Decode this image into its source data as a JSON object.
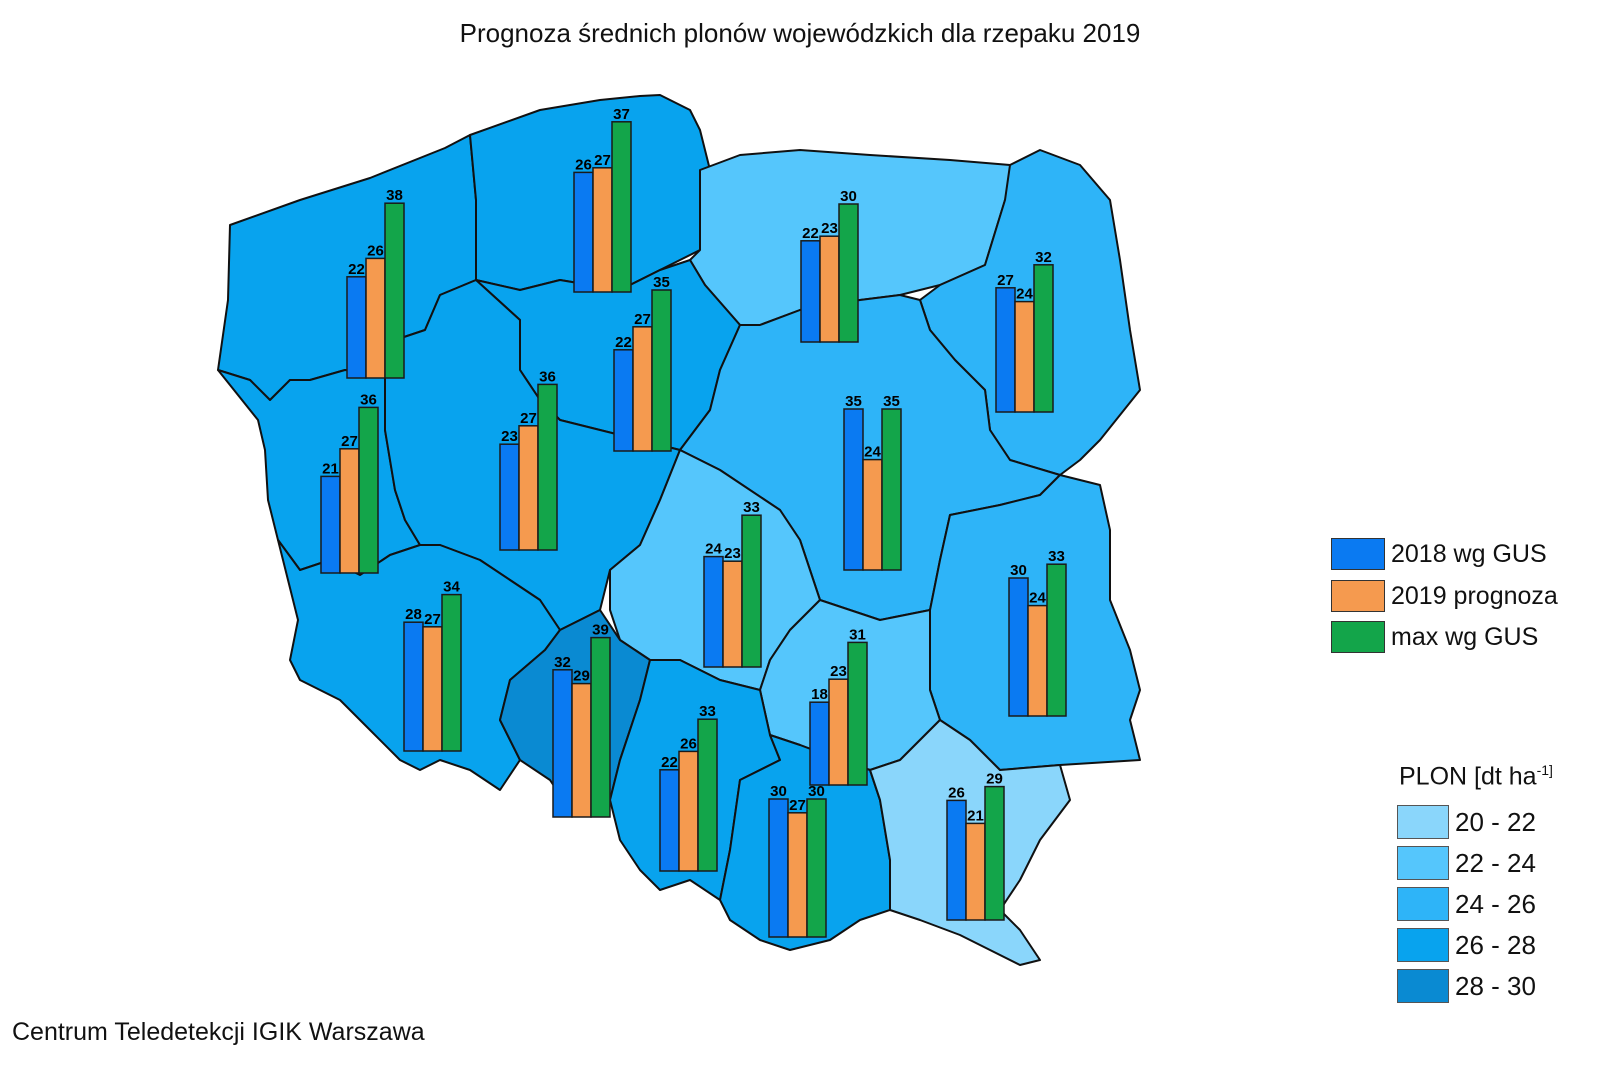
{
  "title": "Prognoza średnich plonów wojewódzkich dla rzepaku  2019",
  "credit": "Centrum Teledetekcji IGIK Warszawa",
  "series_legend": [
    {
      "label": "2018 wg GUS",
      "color": "#0a7af2"
    },
    {
      "label": "2019 prognoza",
      "color": "#f59a4f"
    },
    {
      "label": "max wg GUS",
      "color": "#13a54a"
    }
  ],
  "scale_legend": {
    "title": "PLON [dt ha",
    "title_sup": "-1]",
    "classes": [
      {
        "label": "20 - 22",
        "color": "#8ad6fb"
      },
      {
        "label": "22 - 24",
        "color": "#55c6fc"
      },
      {
        "label": "24 - 26",
        "color": "#2eb4f8"
      },
      {
        "label": "26 - 28",
        "color": "#08a3ee"
      },
      {
        "label": "28 - 30",
        "color": "#0a8ad2"
      }
    ]
  },
  "chart_data": {
    "type": "bar",
    "series": [
      "2018 wg GUS",
      "2019 prognoza",
      "max wg GUS"
    ],
    "regions": [
      {
        "id": "pomorskie",
        "fill_class": 3,
        "values": [
          26,
          27,
          37
        ]
      },
      {
        "id": "zachodniopomorskie",
        "fill_class": 3,
        "values": [
          22,
          26,
          38
        ]
      },
      {
        "id": "warminsko-mazurskie",
        "fill_class": 1,
        "values": [
          22,
          23,
          30
        ]
      },
      {
        "id": "podlaskie",
        "fill_class": 2,
        "values": [
          27,
          24,
          32
        ]
      },
      {
        "id": "kujawsko-pomorskie",
        "fill_class": 3,
        "values": [
          22,
          27,
          35
        ]
      },
      {
        "id": "lubuskie",
        "fill_class": 3,
        "values": [
          21,
          27,
          36
        ]
      },
      {
        "id": "wielkopolskie",
        "fill_class": 3,
        "values": [
          23,
          27,
          36
        ]
      },
      {
        "id": "mazowieckie",
        "fill_class": 2,
        "values": [
          35,
          24,
          35
        ]
      },
      {
        "id": "lodzkie",
        "fill_class": 1,
        "values": [
          24,
          23,
          33
        ]
      },
      {
        "id": "lubelskie",
        "fill_class": 2,
        "values": [
          30,
          24,
          33
        ]
      },
      {
        "id": "dolnoslaskie",
        "fill_class": 3,
        "values": [
          28,
          27,
          34
        ]
      },
      {
        "id": "opolskie",
        "fill_class": 4,
        "values": [
          32,
          29,
          39
        ]
      },
      {
        "id": "swietokrzyskie",
        "fill_class": 1,
        "values": [
          18,
          23,
          31
        ]
      },
      {
        "id": "slaskie",
        "fill_class": 3,
        "values": [
          22,
          26,
          33
        ]
      },
      {
        "id": "malopolskie",
        "fill_class": 3,
        "values": [
          30,
          27,
          30
        ]
      },
      {
        "id": "podkarpackie",
        "fill_class": 0,
        "values": [
          26,
          21,
          29
        ]
      }
    ]
  }
}
